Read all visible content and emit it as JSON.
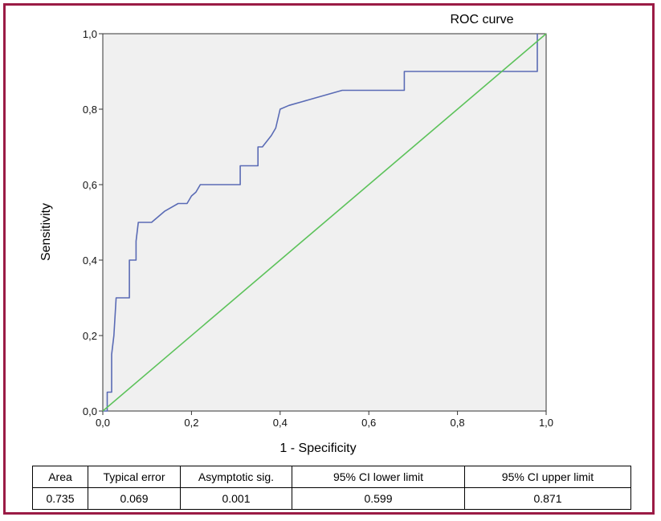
{
  "chart_data": {
    "type": "line",
    "title": "ROC curve",
    "xlabel": "1 - Specificity",
    "ylabel": "Sensitivity",
    "xlim": [
      0,
      1
    ],
    "ylim": [
      0,
      1
    ],
    "x_ticks": [
      "0,0",
      "0,2",
      "0,4",
      "0,6",
      "0,8",
      "1,0"
    ],
    "y_ticks": [
      "0,0",
      "0,2",
      "0,4",
      "0,6",
      "0,8",
      "1,0"
    ],
    "grid": false,
    "plot_background": "#f0f0f0",
    "series": [
      {
        "color": "#5a6bb5",
        "x": [
          0,
          0.01,
          0.01,
          0.02,
          0.02,
          0.025,
          0.03,
          0.03,
          0.06,
          0.06,
          0.075,
          0.075,
          0.08,
          0.08,
          0.11,
          0.14,
          0.17,
          0.19,
          0.2,
          0.21,
          0.22,
          0.31,
          0.31,
          0.35,
          0.35,
          0.36,
          0.38,
          0.39,
          0.4,
          0.42,
          0.45,
          0.48,
          0.54,
          0.68,
          0.68,
          0.98,
          0.98
        ],
        "y": [
          0,
          0,
          0.05,
          0.05,
          0.15,
          0.2,
          0.3,
          0.3,
          0.3,
          0.4,
          0.4,
          0.45,
          0.5,
          0.5,
          0.5,
          0.53,
          0.55,
          0.55,
          0.57,
          0.58,
          0.6,
          0.6,
          0.65,
          0.65,
          0.7,
          0.7,
          0.73,
          0.75,
          0.8,
          0.81,
          0.82,
          0.83,
          0.85,
          0.85,
          0.9,
          0.9,
          1.0
        ]
      },
      {
        "color": "#5cc25a",
        "x": [
          0,
          1
        ],
        "y": [
          0,
          1
        ]
      }
    ]
  },
  "table": {
    "headers": [
      "Area",
      "Typical error",
      "Asymptotic sig.",
      "95% CI lower limit",
      "95% CI upper limit"
    ],
    "row": [
      "0.735",
      "0.069",
      "0.001",
      "0.599",
      "0.871"
    ]
  },
  "colors": {
    "frame": "#9b1b45",
    "roc_line": "#5a6bb5",
    "reference_line": "#5cc25a"
  }
}
